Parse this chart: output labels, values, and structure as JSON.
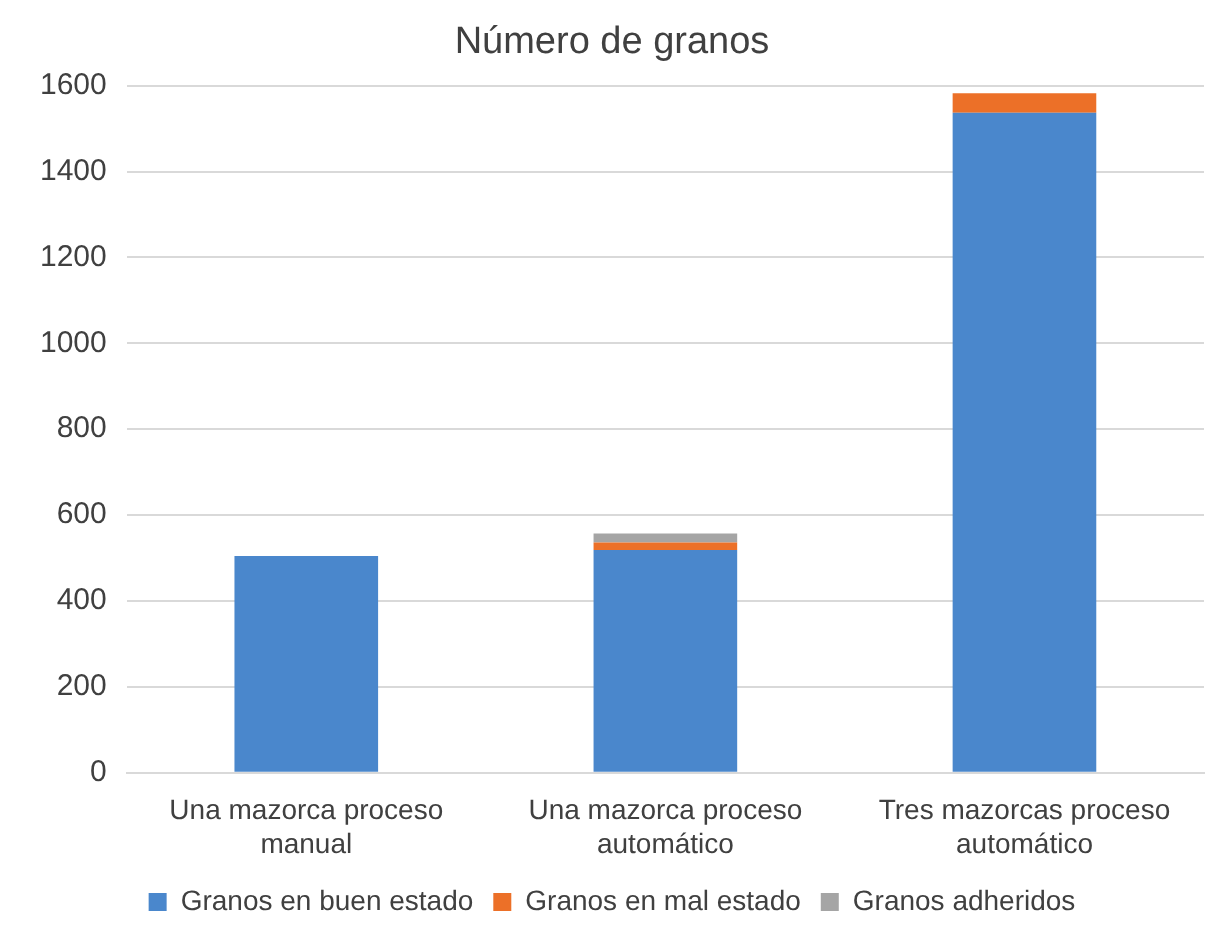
{
  "chart_data": {
    "type": "bar",
    "title": "Número de granos",
    "stacked": true,
    "categories": [
      [
        "Una mazorca proceso",
        "manual"
      ],
      [
        "Una mazorca proceso",
        "automático"
      ],
      [
        "Tres mazorcas proceso",
        "automático"
      ]
    ],
    "series": [
      {
        "name": "Granos en buen estado",
        "color": "#4a87cc",
        "values": [
          505,
          519,
          1537
        ]
      },
      {
        "name": "Granos en mal estado",
        "color": "#ec7028",
        "values": [
          0,
          17,
          45
        ]
      },
      {
        "name": "Granos adheridos",
        "color": "#a5a5a5",
        "values": [
          0,
          21,
          0
        ]
      }
    ],
    "ylim": [
      0,
      1600
    ],
    "yticks": [
      0,
      200,
      400,
      600,
      800,
      1000,
      1200,
      1400,
      1600
    ],
    "grid": "y",
    "legend": "bottom"
  }
}
